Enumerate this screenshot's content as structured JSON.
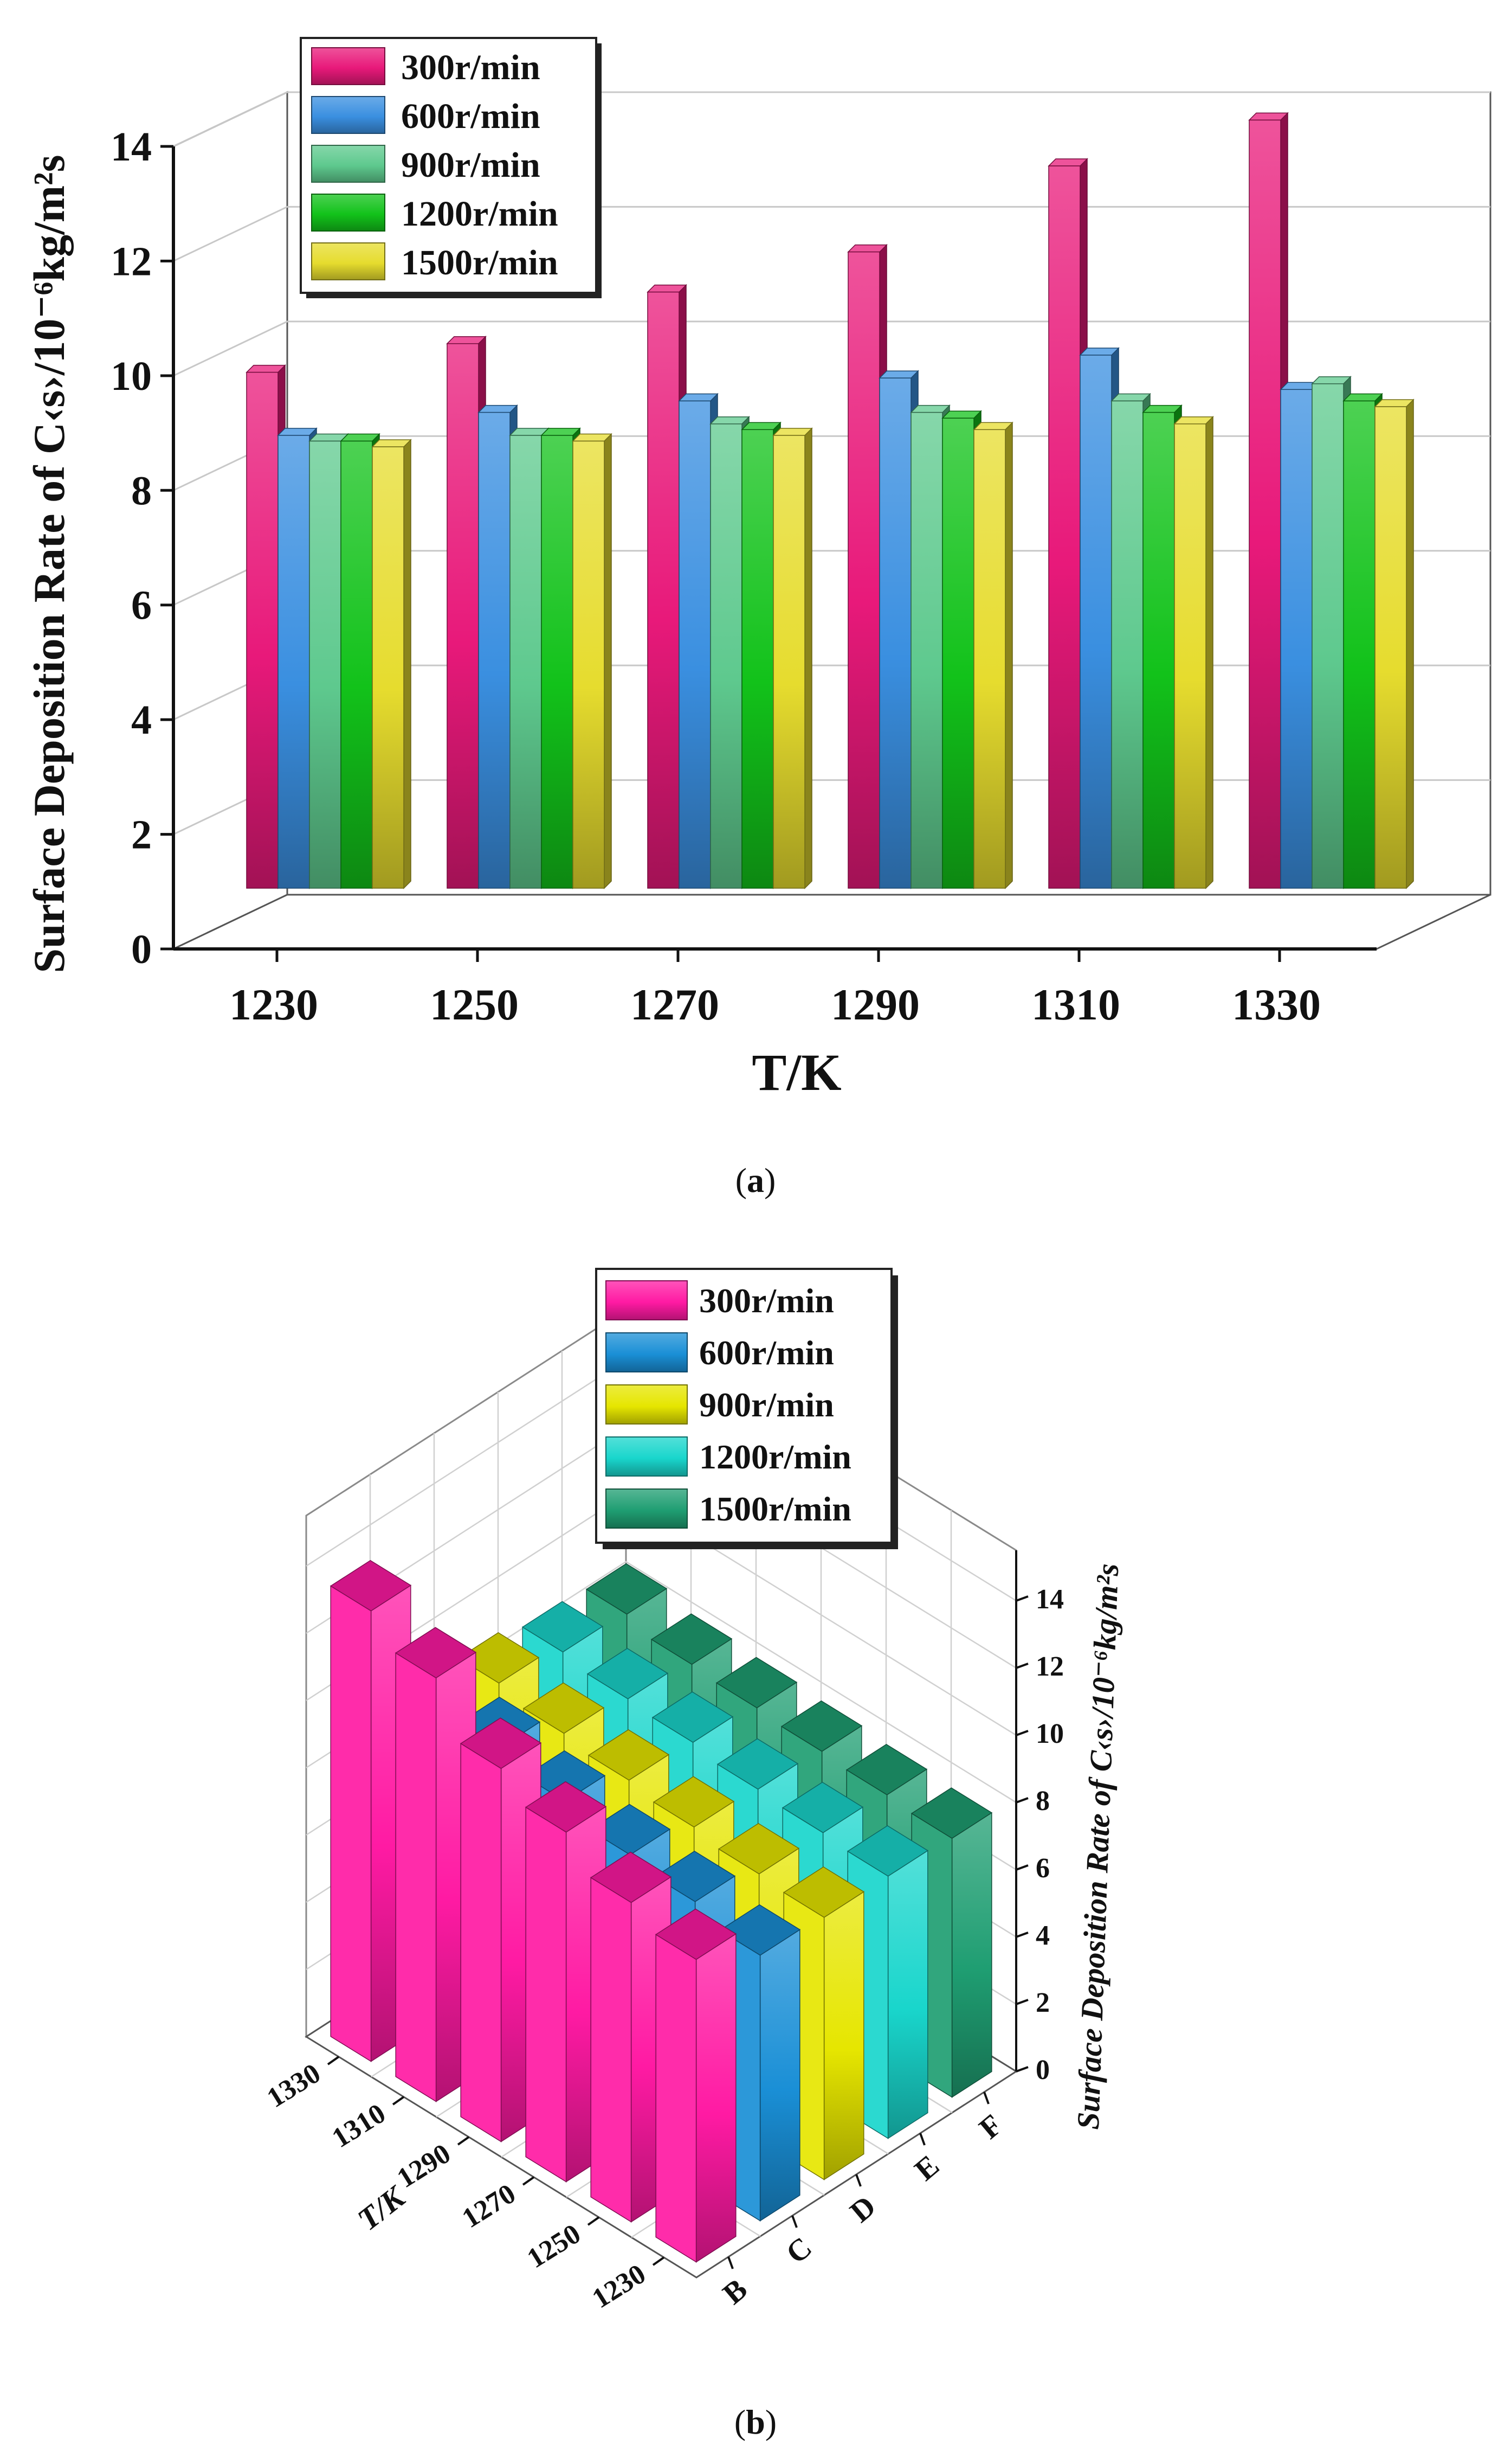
{
  "figure": {
    "caption_a": "a",
    "caption_b": "b"
  },
  "chart_data": [
    {
      "panel": "a",
      "type": "bar",
      "title": "",
      "xlabel": "T/K",
      "ylabel": "Surface Deposition Rate of C<s>/10⁻⁶kg/m²s",
      "ylim": [
        0,
        14
      ],
      "yticks": [
        0,
        2,
        4,
        6,
        8,
        10,
        12,
        14
      ],
      "categories": [
        "1230",
        "1250",
        "1270",
        "1290",
        "1310",
        "1330"
      ],
      "legend_position": "top-left",
      "grid": true,
      "series": [
        {
          "name": "300r/min",
          "color": "#e8197a",
          "values": [
            9.0,
            9.5,
            10.4,
            11.1,
            12.6,
            13.4
          ]
        },
        {
          "name": "600r/min",
          "color": "#3a8fe0",
          "values": [
            7.9,
            8.3,
            8.5,
            8.9,
            9.3,
            8.7
          ]
        },
        {
          "name": "900r/min",
          "color": "#5ec98e",
          "values": [
            7.8,
            7.9,
            8.1,
            8.3,
            8.5,
            8.8
          ]
        },
        {
          "name": "1200r/min",
          "color": "#12c21a",
          "values": [
            7.8,
            7.9,
            8.0,
            8.2,
            8.3,
            8.5
          ]
        },
        {
          "name": "1500r/min",
          "color": "#e6dc2e",
          "values": [
            7.7,
            7.8,
            7.9,
            8.0,
            8.1,
            8.4
          ]
        }
      ]
    },
    {
      "panel": "b",
      "type": "bar",
      "title": "",
      "xlabel": "T/K",
      "zlabel": "Surface Deposition Rate of C<s>/10⁻⁶kg/m²s",
      "zlim": [
        0,
        14
      ],
      "zticks": [
        0,
        2,
        4,
        6,
        8,
        10,
        12,
        14
      ],
      "categories": [
        "1230",
        "1250",
        "1270",
        "1290",
        "1310",
        "1330"
      ],
      "depth_categories": [
        "B",
        "C",
        "D",
        "E",
        "F"
      ],
      "legend_position": "top-center",
      "grid": true,
      "series": [
        {
          "name": "300r/min",
          "color": "#ff1aa3",
          "values": [
            9.0,
            9.5,
            10.4,
            11.1,
            12.6,
            13.4
          ]
        },
        {
          "name": "600r/min",
          "color": "#1a8fd6",
          "values": [
            7.9,
            8.3,
            8.5,
            8.9,
            9.3,
            8.7
          ]
        },
        {
          "name": "900r/min",
          "color": "#e6e600",
          "values": [
            7.8,
            7.9,
            8.1,
            8.3,
            8.5,
            8.8
          ]
        },
        {
          "name": "1200r/min",
          "color": "#19d6cc",
          "values": [
            7.8,
            7.9,
            8.0,
            8.2,
            8.3,
            8.5
          ]
        },
        {
          "name": "1500r/min",
          "color": "#1f9e72",
          "values": [
            7.7,
            7.8,
            7.9,
            8.0,
            8.1,
            8.4
          ]
        }
      ]
    }
  ]
}
